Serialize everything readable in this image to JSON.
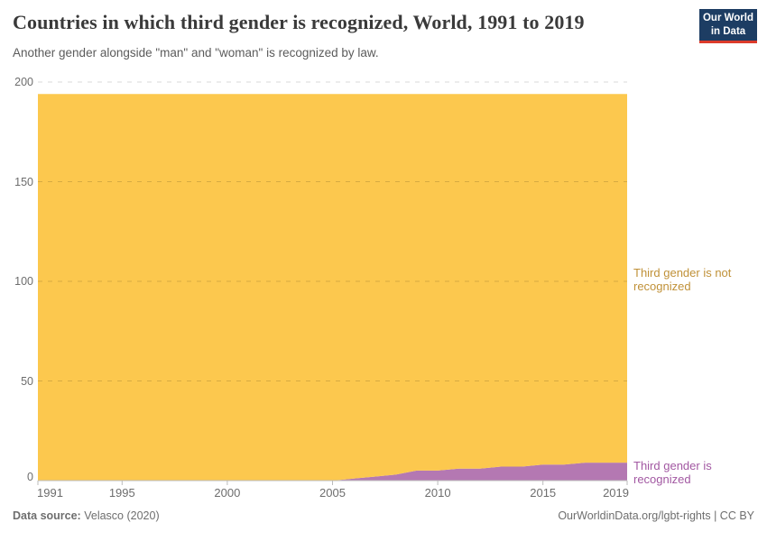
{
  "header": {
    "title": "Countries in which third gender is recognized, World, 1991 to 2019",
    "subtitle": "Another gender alongside \"man\" and \"woman\" is recognized by law.",
    "logo": {
      "line1": "Our World",
      "line2": "in Data"
    }
  },
  "chart_data": {
    "type": "area",
    "stacked": true,
    "title": "Countries in which third gender is recognized, World, 1991 to 2019",
    "x": [
      1991,
      1992,
      1993,
      1994,
      1995,
      1996,
      1997,
      1998,
      1999,
      2000,
      2001,
      2002,
      2003,
      2004,
      2005,
      2006,
      2007,
      2008,
      2009,
      2010,
      2011,
      2012,
      2013,
      2014,
      2015,
      2016,
      2017,
      2018,
      2019
    ],
    "series": [
      {
        "name": "Third gender is recognized",
        "color": "#b478b2",
        "label_color": "#a258a2",
        "values": [
          0,
          0,
          0,
          0,
          0,
          0,
          0,
          0,
          0,
          0,
          0,
          0,
          0,
          0,
          0,
          1,
          2,
          3,
          5,
          5,
          6,
          6,
          7,
          7,
          8,
          8,
          9,
          9,
          9
        ]
      },
      {
        "name": "Third gender is not recognized",
        "color": "#fcc84e",
        "label_color": "#c09138",
        "values": [
          194,
          194,
          194,
          194,
          194,
          194,
          194,
          194,
          194,
          194,
          194,
          194,
          194,
          194,
          194,
          193,
          192,
          191,
          189,
          189,
          188,
          188,
          187,
          187,
          186,
          186,
          185,
          185,
          185
        ]
      }
    ],
    "ylim": [
      0,
      200
    ],
    "yticks": [
      0,
      50,
      100,
      150,
      200
    ],
    "xticks": [
      1991,
      1995,
      2000,
      2005,
      2010,
      2015,
      2019
    ],
    "grid": "horizontal dashed",
    "legend": "right-edge area labels"
  },
  "footer": {
    "source_label": "Data source:",
    "source_value": "Velasco (2020)",
    "attribution": "OurWorldinData.org/lgbt-rights | CC BY"
  }
}
